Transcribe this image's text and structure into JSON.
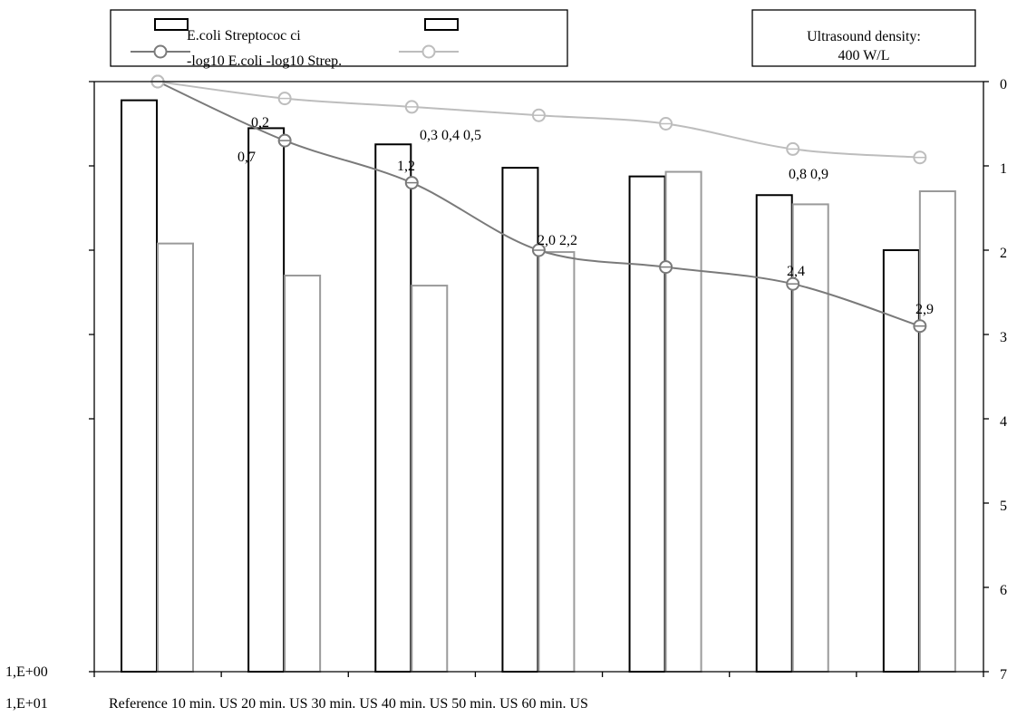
{
  "chart_data": {
    "type": "bar",
    "categories": [
      "Reference",
      "10 min. US",
      "20 min. US",
      "30 min. US",
      "40 min. US",
      "50 min. US",
      "60 min. US"
    ],
    "category_axis_text": "Reference 10 min. US 20 min. US 30 min. US 40 min. US 50 min. US 60 min. US",
    "left_axis": {
      "labels": [
        "1,E+00",
        "1,E+01"
      ],
      "scale": "log",
      "range": [
        1,
        10000000
      ]
    },
    "right_axis": {
      "ticks": [
        0,
        1,
        2,
        3,
        4,
        5,
        6,
        7
      ],
      "range": [
        0,
        7
      ],
      "inverted": true
    },
    "series": [
      {
        "name": "E.coli",
        "kind": "bar",
        "axis": "left",
        "color": "#000000",
        "values": [
          6000000,
          2800000,
          1800000,
          950000,
          750000,
          450000,
          100000
        ]
      },
      {
        "name": "Streptococ ci",
        "kind": "bar",
        "axis": "left",
        "color": "#9a9a9a",
        "values": [
          120000,
          50000,
          38000,
          95000,
          850000,
          350000,
          500000
        ]
      },
      {
        "name": "-log10 E.coli",
        "kind": "line",
        "axis": "right",
        "color": "#7a7a7a",
        "values": [
          0,
          0.7,
          1.2,
          2.0,
          2.2,
          2.4,
          2.9
        ]
      },
      {
        "name": "-log10 Strep.",
        "kind": "line",
        "axis": "right",
        "color": "#bdbdbd",
        "values": [
          0,
          0.2,
          0.3,
          0.4,
          0.5,
          0.8,
          0.9
        ]
      }
    ],
    "legend": {
      "placement": "top",
      "line1": "E.coli Streptococ ci",
      "line2": "-log10 E.coli -log10 Strep."
    },
    "annotation_box": {
      "line1": "Ultrasound density:",
      "line2": "400 W/L"
    },
    "data_labels": [
      {
        "text": "0,2",
        "series": 2,
        "index": 1
      },
      {
        "text": "0,7",
        "series": 0,
        "index": 1
      },
      {
        "text": "1,2",
        "series": 2,
        "index": 2
      },
      {
        "text": "0,3 0,4 0,5",
        "series": 3,
        "index": 2
      },
      {
        "text": "2,0 2,2",
        "series": 2,
        "index": 3
      },
      {
        "text": "2,4",
        "series": 2,
        "index": 5
      },
      {
        "text": "0,8 0,9",
        "series": 3,
        "index": 5
      },
      {
        "text": "2,9",
        "series": 2,
        "index": 6
      }
    ]
  }
}
